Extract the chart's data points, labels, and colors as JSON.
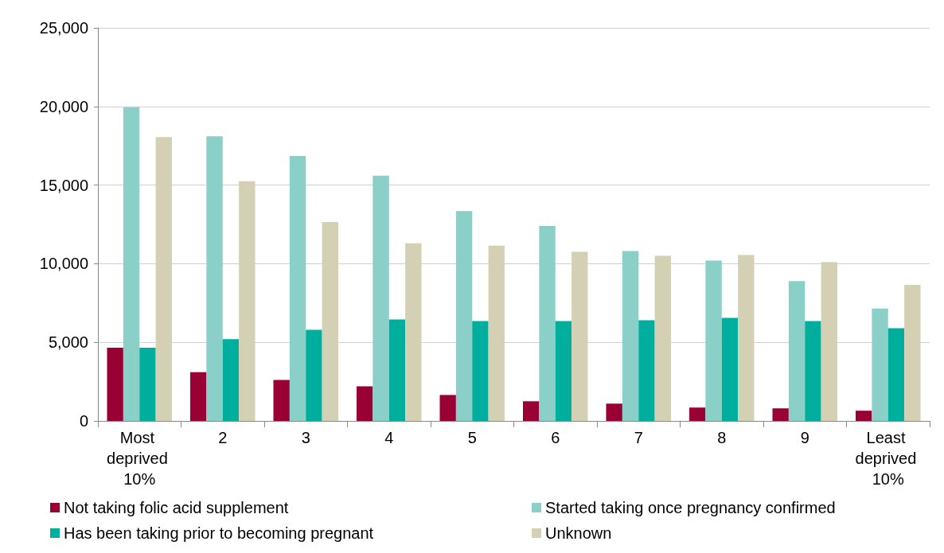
{
  "chart_data": {
    "type": "bar",
    "categories": [
      "Most deprived 10%",
      "2",
      "3",
      "4",
      "5",
      "6",
      "7",
      "8",
      "9",
      "Least deprived 10%"
    ],
    "series": [
      {
        "name": "Not taking folic acid supplement",
        "color": "#990033",
        "values": [
          4650,
          3100,
          2600,
          2200,
          1650,
          1250,
          1100,
          850,
          800,
          650
        ]
      },
      {
        "name": "Started taking once pregnancy confirmed",
        "color": "#8ad0c9",
        "values": [
          19950,
          18100,
          16850,
          15600,
          13350,
          12400,
          10800,
          10200,
          8900,
          7150
        ]
      },
      {
        "name": "Has been taking prior to becoming pregnant",
        "color": "#00ae9e",
        "values": [
          4650,
          5200,
          5800,
          6450,
          6350,
          6350,
          6400,
          6550,
          6350,
          5900
        ]
      },
      {
        "name": "Unknown",
        "color": "#d3d0b4",
        "values": [
          18050,
          15250,
          12650,
          11300,
          11150,
          10750,
          10500,
          10550,
          10100,
          8650
        ]
      }
    ],
    "ylim": [
      0,
      25000
    ],
    "yticks": [
      0,
      {
        "value": 5000,
        "label": "5,000"
      },
      {
        "value": 10000,
        "label": "10,000"
      },
      {
        "value": 15000,
        "label": "15,000"
      },
      {
        "value": 20000,
        "label": "20,000"
      },
      {
        "value": 25000,
        "label": "25,000"
      }
    ],
    "grid": "y",
    "legend": "bottom"
  }
}
